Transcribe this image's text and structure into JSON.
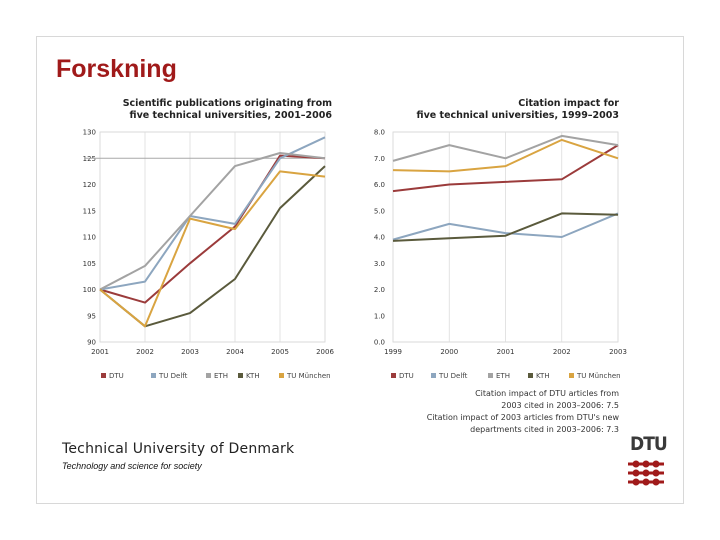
{
  "slide": {
    "title": "Forskning",
    "university": "Technical University of Denmark",
    "tagline": "Technology and science for society",
    "logo_text": "DTU"
  },
  "colors": {
    "DTU": "#9b3b3b",
    "TU Delft": "#8da6bf",
    "ETH": "#a3a3a3",
    "KTH": "#5a5a3c",
    "TU München": "#d9a441",
    "title": "#a01a1a"
  },
  "chart_data": [
    {
      "type": "line",
      "title_lines": [
        "Scientific publications originating from",
        "five technical universities, 2001–2006"
      ],
      "x": [
        "2001",
        "2002",
        "2003",
        "2004",
        "2005",
        "2006"
      ],
      "ylim": [
        90,
        130
      ],
      "yticks": [
        "90",
        "95",
        "100",
        "105",
        "110",
        "115",
        "120",
        "125",
        "130"
      ],
      "hline": 125,
      "series": [
        {
          "name": "DTU",
          "values": [
            100,
            97.5,
            105,
            112,
            125.5,
            125
          ]
        },
        {
          "name": "TU Delft",
          "values": [
            100,
            101.5,
            114,
            112.5,
            125,
            129
          ]
        },
        {
          "name": "ETH",
          "values": [
            100,
            104.5,
            114,
            123.5,
            126,
            125
          ]
        },
        {
          "name": "KTH",
          "values": [
            100,
            93,
            95.5,
            102,
            115.5,
            123.5
          ]
        },
        {
          "name": "TU München",
          "values": [
            100,
            93,
            113.5,
            111.5,
            122.5,
            121.5
          ]
        }
      ],
      "legend": [
        "DTU",
        "TU Delft",
        "ETH",
        "KTH",
        "TU München"
      ]
    },
    {
      "type": "line",
      "title_lines": [
        "Citation impact for",
        "five technical universities, 1999–2003"
      ],
      "x": [
        "1999",
        "2000",
        "2001",
        "2002",
        "2003"
      ],
      "ylim": [
        0,
        8
      ],
      "yticks": [
        "0.0",
        "1.0",
        "2.0",
        "3.0",
        "4.0",
        "5.0",
        "6.0",
        "7.0",
        "8.0"
      ],
      "series": [
        {
          "name": "DTU",
          "values": [
            5.75,
            6.0,
            6.1,
            6.2,
            7.5
          ]
        },
        {
          "name": "TU Delft",
          "values": [
            3.9,
            4.5,
            4.15,
            4.0,
            4.9
          ]
        },
        {
          "name": "ETH",
          "values": [
            6.9,
            7.5,
            7.0,
            7.85,
            7.5
          ]
        },
        {
          "name": "KTH",
          "values": [
            3.85,
            3.95,
            4.05,
            4.9,
            4.85
          ]
        },
        {
          "name": "TU München",
          "values": [
            6.55,
            6.5,
            6.7,
            7.7,
            7.0
          ]
        }
      ],
      "legend": [
        "DTU",
        "TU Delft",
        "ETH",
        "KTH",
        "TU München"
      ],
      "notes": [
        "Citation impact of DTU articles from",
        "2003 cited in 2003–2006: 7.5",
        "Citation impact of 2003 articles from DTU's new",
        "departments cited in 2003–2006: 7.3"
      ]
    }
  ]
}
